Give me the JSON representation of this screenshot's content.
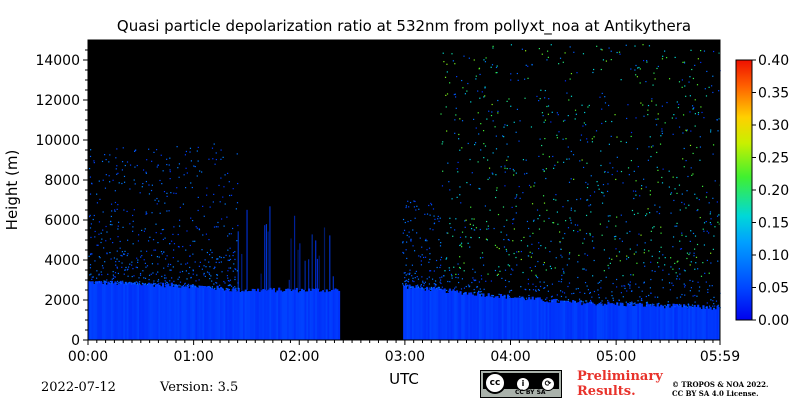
{
  "chart_data": {
    "type": "heatmap",
    "title": "Quasi particle depolarization ratio at 532nm from pollyxt_noa at Antikythera",
    "xlabel": "UTC",
    "ylabel": "Height (m)",
    "x_ticks": [
      "00:00",
      "01:00",
      "02:00",
      "03:00",
      "04:00",
      "05:00",
      "05:59"
    ],
    "x_range_minutes": [
      0,
      359
    ],
    "y_ticks": [
      0,
      2000,
      4000,
      6000,
      8000,
      10000,
      12000,
      14000
    ],
    "ylim": [
      0,
      15000
    ],
    "colorbar": {
      "ticks": [
        "0.00",
        "0.05",
        "0.10",
        "0.15",
        "0.20",
        "0.25",
        "0.30",
        "0.35",
        "0.40"
      ],
      "range": [
        0,
        0.4
      ],
      "colormap": "jet"
    },
    "background_color": "#000000",
    "no_data_gaps_minutes": [
      [
        143,
        178
      ]
    ],
    "boundary_layer_top_m": [
      {
        "t": 0,
        "h": 2900
      },
      {
        "t": 60,
        "h": 2700
      },
      {
        "t": 85,
        "h": 2500
      },
      {
        "t": 143,
        "h": 2500
      },
      {
        "t": 178,
        "h": 2700
      },
      {
        "t": 210,
        "h": 2400
      },
      {
        "t": 270,
        "h": 1900
      },
      {
        "t": 330,
        "h": 1700
      },
      {
        "t": 359,
        "h": 1600
      }
    ],
    "typical_values": {
      "boundary_layer": 0.04,
      "free_troposphere_sparse": 0.15
    }
  },
  "footer": {
    "date": "2022-07-12",
    "version": "Version: 3.5",
    "license_badge": "CC BY SA",
    "preliminary_line1": "Preliminary",
    "preliminary_line2": "Results.",
    "license_line1": "© TROPOS & NOA 2022.",
    "license_line2": "CC BY SA 4.0 License."
  }
}
